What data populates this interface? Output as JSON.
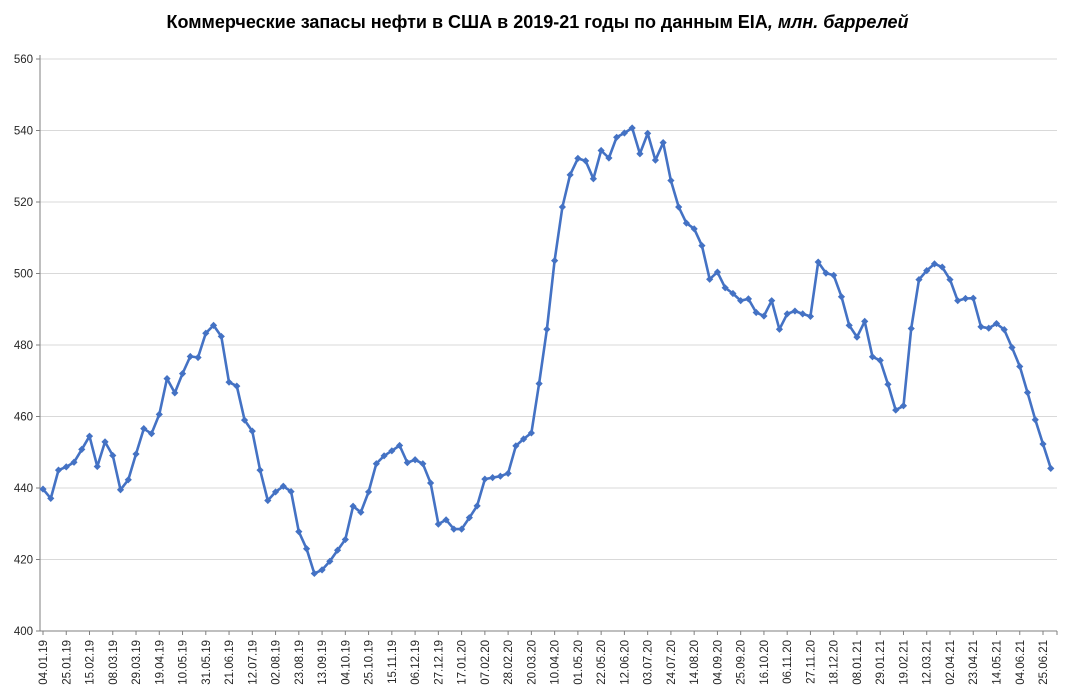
{
  "title": {
    "main": "Коммерческие запасы нефти в США в 2019-21 годы по данным EIA",
    "suffix": ", млн. баррелей"
  },
  "chart_data": {
    "type": "line",
    "title": "Коммерческие запасы нефти в США в 2019-21 годы по данным EIA, млн. баррелей",
    "xlabel": "",
    "ylabel": "",
    "ylim": [
      400,
      560
    ],
    "y_step": 20,
    "y_tick_labels": [
      "400",
      "420",
      "440",
      "460",
      "480",
      "500",
      "520",
      "540",
      "560"
    ],
    "x_tick_every": 3,
    "x_tick_labels": [
      "04.01.19",
      "25.01.19",
      "15.02.19",
      "08.03.19",
      "29.03.19",
      "19.04.19",
      "10.05.19",
      "31.05.19",
      "21.06.19",
      "12.07.19",
      "02.08.19",
      "23.08.19",
      "13.09.19",
      "04.10.19",
      "25.10.19",
      "15.11.19",
      "06.12.19",
      "27.12.19",
      "17.01.20",
      "07.02.20",
      "28.02.20",
      "20.03.20",
      "10.04.20",
      "01.05.20",
      "22.05.20",
      "12.06.20",
      "03.07.20",
      "24.07.20",
      "14.08.20",
      "04.09.20",
      "25.09.20",
      "16.10.20",
      "06.11.20",
      "27.11.20",
      "18.12.20",
      "08.01.21",
      "29.01.21",
      "19.02.21",
      "12.03.21",
      "02.04.21",
      "23.04.21",
      "14.05.21",
      "04.06.21",
      "25.06.21"
    ],
    "grid": "horizontal",
    "legend": "none",
    "marker": "diamond",
    "colors": {
      "line": "#4472C4",
      "grid": "#D9D9D9",
      "axis": "#7F7F7F",
      "tick_text": "#262626",
      "title_text": "#000000"
    },
    "values": [
      439.7,
      437.1,
      445.0,
      445.9,
      447.2,
      450.8,
      454.5,
      446.0,
      452.9,
      449.1,
      439.5,
      442.3,
      449.5,
      456.6,
      455.2,
      460.6,
      470.6,
      466.6,
      472.0,
      476.8,
      476.5,
      483.3,
      485.5,
      482.4,
      469.6,
      468.5,
      459.0,
      455.9,
      445.0,
      436.5,
      438.9,
      440.5,
      439.0,
      427.8,
      423.0,
      416.1,
      417.1,
      419.5,
      422.6,
      425.6,
      434.9,
      433.2,
      438.9,
      446.8,
      449.0,
      450.4,
      451.9,
      447.1,
      447.9,
      446.8,
      441.4,
      429.9,
      431.1,
      428.5,
      428.5,
      431.7,
      435.0,
      442.5,
      442.9,
      443.3,
      444.1,
      451.8,
      453.7,
      455.4,
      469.2,
      484.4,
      503.6,
      518.6,
      527.6,
      532.2,
      531.5,
      526.5,
      534.4,
      532.3,
      538.1,
      539.3,
      540.7,
      533.5,
      539.2,
      531.7,
      536.6,
      526.0,
      518.6,
      514.1,
      512.5,
      507.8,
      498.4,
      500.4,
      496.0,
      494.4,
      492.4,
      492.9,
      489.1,
      488.1,
      492.4,
      484.4,
      488.7,
      489.5,
      488.7,
      488.0,
      503.2,
      500.1,
      499.5,
      493.5,
      485.5,
      482.2,
      486.6,
      476.7,
      475.7,
      469.0,
      461.8,
      463.0,
      484.6,
      498.3,
      500.8,
      502.7,
      501.8,
      498.3,
      492.4,
      493.0,
      493.1,
      485.1,
      484.7,
      486.0,
      484.3,
      479.3,
      474.0,
      466.7,
      459.1,
      452.3,
      445.5
    ]
  }
}
